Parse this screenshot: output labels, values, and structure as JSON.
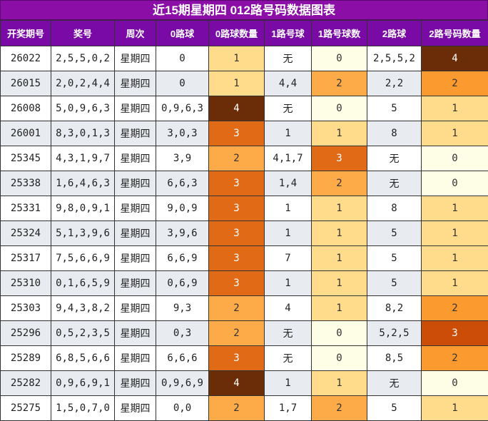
{
  "title": "近15期星期四 012路号码数据图表",
  "headers": [
    "开奖期号",
    "奖号",
    "周次",
    "0路球",
    "0路球数量",
    "1路号球",
    "1路号球数",
    "2路球",
    "2路号码数量"
  ],
  "colors": {
    "title_bg": "#8b0ea7",
    "header_bg": "#7a0aa6",
    "count_0": "#fefde6",
    "count_1": "#ffdc8c",
    "count_2": "#fdaa48",
    "count_3": "#e16a17",
    "count_4": "#6a2d07"
  },
  "rows": [
    {
      "issue": "26022",
      "numbers": "2,5,5,0,2",
      "weekday": "星期四",
      "r0": "0",
      "r0_count": "1",
      "r1": "无",
      "r1_count": "0",
      "r2": "2,5,5,2",
      "r2_count": "4"
    },
    {
      "issue": "26015",
      "numbers": "2,0,2,4,4",
      "weekday": "星期四",
      "r0": "0",
      "r0_count": "1",
      "r1": "4,4",
      "r1_count": "2",
      "r2": "2,2",
      "r2_count": "2"
    },
    {
      "issue": "26008",
      "numbers": "5,0,9,6,3",
      "weekday": "星期四",
      "r0": "0,9,6,3",
      "r0_count": "4",
      "r1": "无",
      "r1_count": "0",
      "r2": "5",
      "r2_count": "1"
    },
    {
      "issue": "26001",
      "numbers": "8,3,0,1,3",
      "weekday": "星期四",
      "r0": "3,0,3",
      "r0_count": "3",
      "r1": "1",
      "r1_count": "1",
      "r2": "8",
      "r2_count": "1"
    },
    {
      "issue": "25345",
      "numbers": "4,3,1,9,7",
      "weekday": "星期四",
      "r0": "3,9",
      "r0_count": "2",
      "r1": "4,1,7",
      "r1_count": "3",
      "r2": "无",
      "r2_count": "0"
    },
    {
      "issue": "25338",
      "numbers": "1,6,4,6,3",
      "weekday": "星期四",
      "r0": "6,6,3",
      "r0_count": "3",
      "r1": "1,4",
      "r1_count": "2",
      "r2": "无",
      "r2_count": "0"
    },
    {
      "issue": "25331",
      "numbers": "9,8,0,9,1",
      "weekday": "星期四",
      "r0": "9,0,9",
      "r0_count": "3",
      "r1": "1",
      "r1_count": "1",
      "r2": "8",
      "r2_count": "1"
    },
    {
      "issue": "25324",
      "numbers": "5,1,3,9,6",
      "weekday": "星期四",
      "r0": "3,9,6",
      "r0_count": "3",
      "r1": "1",
      "r1_count": "1",
      "r2": "5",
      "r2_count": "1"
    },
    {
      "issue": "25317",
      "numbers": "7,5,6,6,9",
      "weekday": "星期四",
      "r0": "6,6,9",
      "r0_count": "3",
      "r1": "7",
      "r1_count": "1",
      "r2": "5",
      "r2_count": "1"
    },
    {
      "issue": "25310",
      "numbers": "0,1,6,5,9",
      "weekday": "星期四",
      "r0": "0,6,9",
      "r0_count": "3",
      "r1": "1",
      "r1_count": "1",
      "r2": "5",
      "r2_count": "1"
    },
    {
      "issue": "25303",
      "numbers": "9,4,3,8,2",
      "weekday": "星期四",
      "r0": "9,3",
      "r0_count": "2",
      "r1": "4",
      "r1_count": "1",
      "r2": "8,2",
      "r2_count": "2"
    },
    {
      "issue": "25296",
      "numbers": "0,5,2,3,5",
      "weekday": "星期四",
      "r0": "0,3",
      "r0_count": "2",
      "r1": "无",
      "r1_count": "0",
      "r2": "5,2,5",
      "r2_count": "3"
    },
    {
      "issue": "25289",
      "numbers": "6,8,5,6,6",
      "weekday": "星期四",
      "r0": "6,6,6",
      "r0_count": "3",
      "r1": "无",
      "r1_count": "0",
      "r2": "8,5",
      "r2_count": "2"
    },
    {
      "issue": "25282",
      "numbers": "0,9,6,9,1",
      "weekday": "星期四",
      "r0": "0,9,6,9",
      "r0_count": "4",
      "r1": "1",
      "r1_count": "1",
      "r2": "无",
      "r2_count": "0"
    },
    {
      "issue": "25275",
      "numbers": "1,5,0,7,0",
      "weekday": "星期四",
      "r0": "0,0",
      "r0_count": "2",
      "r1": "1,7",
      "r1_count": "2",
      "r2": "5",
      "r2_count": "1"
    }
  ]
}
